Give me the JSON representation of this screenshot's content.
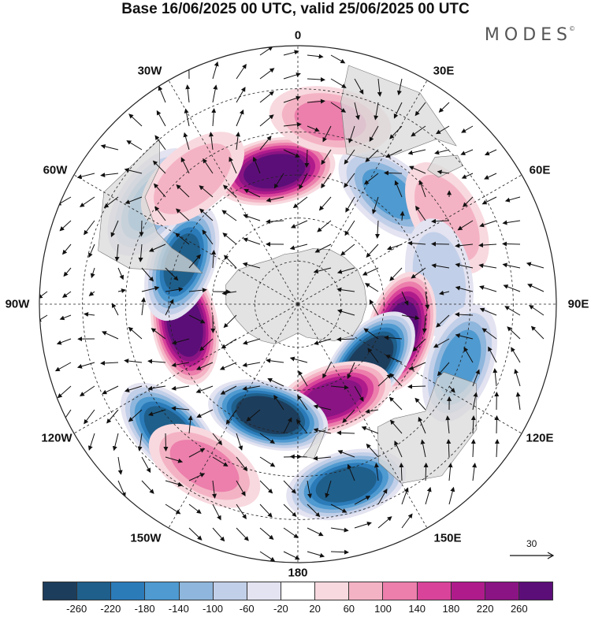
{
  "title": "Base 16/06/2025 00 UTC, valid 25/06/2025 00 UTC",
  "brand": "MODES",
  "brand_mark": "©",
  "lon_labels": [
    "0",
    "30E",
    "60E",
    "90E",
    "120E",
    "150E",
    "180",
    "150W",
    "120W",
    "90W",
    "60W",
    "30W"
  ],
  "vector_scale": {
    "value": "30",
    "icon": "arrow-right-icon"
  },
  "colorbar": {
    "ticks": [
      "-260",
      "-220",
      "-180",
      "-140",
      "-100",
      "-60",
      "-20",
      "20",
      "60",
      "100",
      "140",
      "180",
      "220",
      "260"
    ],
    "colors": [
      "#1d3d5c",
      "#1f5f8b",
      "#2b7bb9",
      "#4f9ad0",
      "#8fb6dc",
      "#c2cfe8",
      "#e3e3f1",
      "#ffffff",
      "#f8d9df",
      "#f4b3c4",
      "#ec7fac",
      "#d9449a",
      "#b01b8c",
      "#8a1483",
      "#5c0e78"
    ]
  },
  "map": {
    "projection": "south-polar-stereographic",
    "gridlines": "dashed",
    "land_color": "#dadada",
    "anomalies": [
      {
        "lon": 350,
        "lat": -43,
        "value": 260
      },
      {
        "lon": 40,
        "lat": -40,
        "value": -120
      },
      {
        "lon": 60,
        "lat": -30,
        "value": 70
      },
      {
        "lon": 80,
        "lat": -40,
        "value": -70
      },
      {
        "lon": 105,
        "lat": -53,
        "value": 260
      },
      {
        "lon": 130,
        "lat": -58,
        "value": -280
      },
      {
        "lon": 160,
        "lat": -55,
        "value": 210
      },
      {
        "lon": 195,
        "lat": -50,
        "value": -280
      },
      {
        "lon": 225,
        "lat": -27,
        "value": -220
      },
      {
        "lon": 210,
        "lat": -25,
        "value": 90
      },
      {
        "lon": 260,
        "lat": -50,
        "value": 280
      },
      {
        "lon": 290,
        "lat": -47,
        "value": -200
      },
      {
        "lon": 305,
        "lat": -28,
        "value": -120
      },
      {
        "lon": 320,
        "lat": -33,
        "value": 60
      },
      {
        "lon": 10,
        "lat": -25,
        "value": 80
      },
      {
        "lon": 110,
        "lat": -30,
        "value": -130
      },
      {
        "lon": 165,
        "lat": -25,
        "value": -210
      }
    ]
  }
}
